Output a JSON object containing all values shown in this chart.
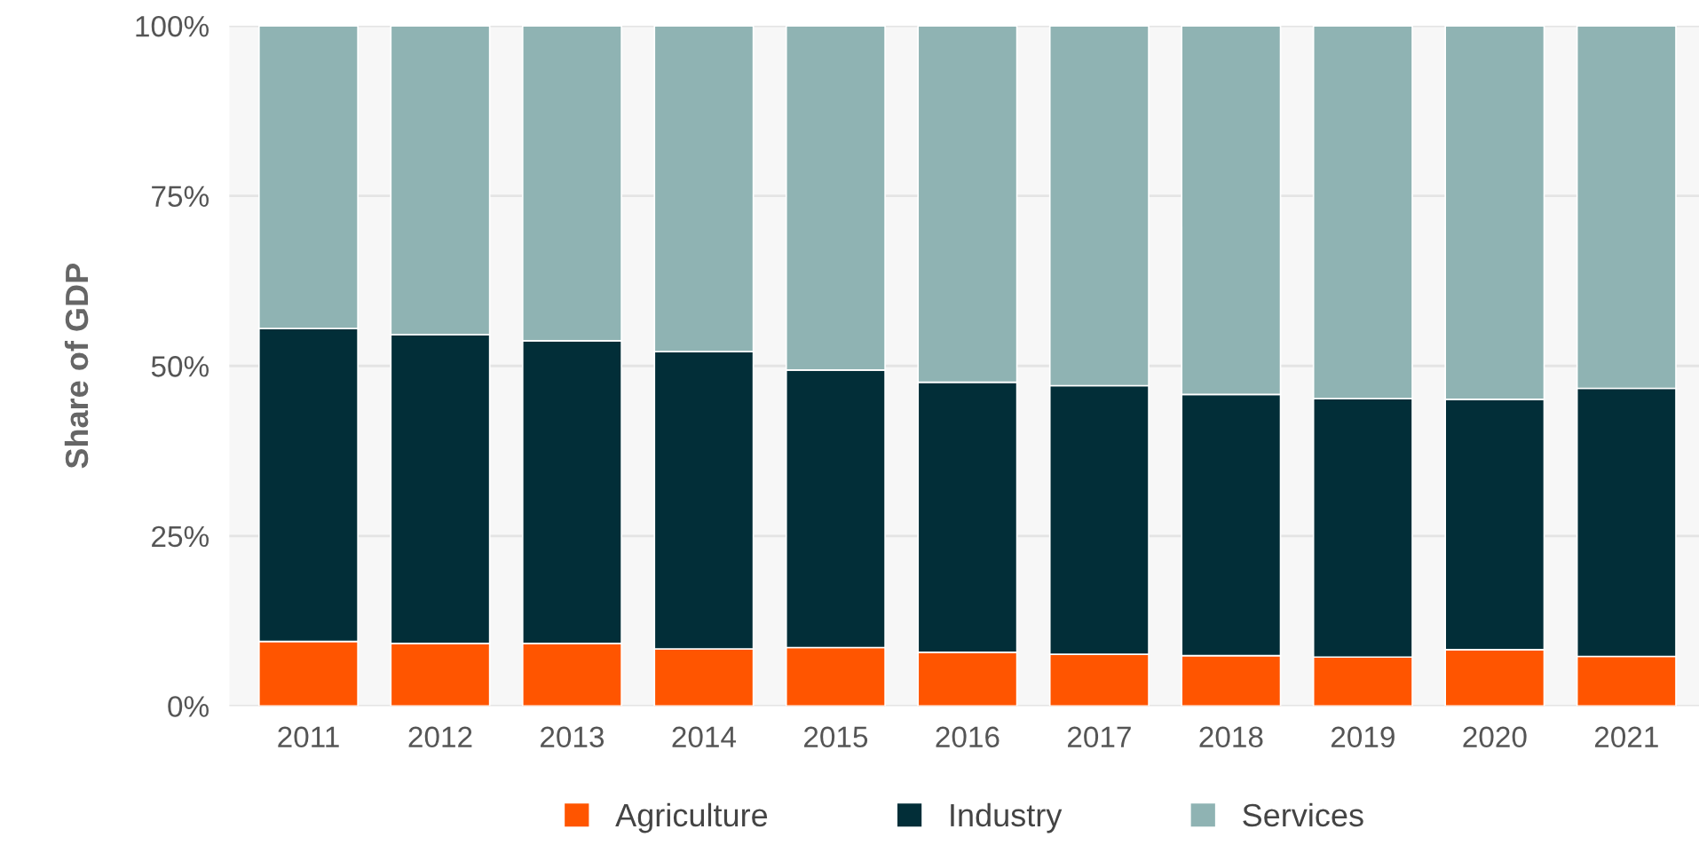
{
  "chart_data": {
    "type": "bar",
    "stacked": true,
    "ylabel": "Share of GDP",
    "categories": [
      "2011",
      "2012",
      "2013",
      "2014",
      "2015",
      "2016",
      "2017",
      "2018",
      "2019",
      "2020",
      "2021"
    ],
    "series": [
      {
        "name": "Agriculture",
        "color": "#ff5500",
        "values": [
          9.5,
          9.2,
          9.2,
          8.4,
          8.6,
          7.9,
          7.6,
          7.4,
          7.2,
          8.3,
          7.3
        ]
      },
      {
        "name": "Industry",
        "color": "#022e38",
        "values": [
          46.0,
          45.4,
          44.5,
          43.7,
          40.8,
          39.7,
          39.5,
          38.4,
          38.0,
          36.8,
          39.4
        ]
      },
      {
        "name": "Services",
        "color": "#8fb3b3",
        "values": [
          44.5,
          45.4,
          46.3,
          47.9,
          50.6,
          52.4,
          52.9,
          54.2,
          54.8,
          54.9,
          53.3
        ]
      }
    ],
    "ylim": [
      0,
      100
    ],
    "yticks": [
      {
        "value": 0,
        "label": "0%"
      },
      {
        "value": 25,
        "label": "25%"
      },
      {
        "value": 50,
        "label": "50%"
      },
      {
        "value": 75,
        "label": "75%"
      },
      {
        "value": 100,
        "label": "100%"
      }
    ],
    "grid": "y",
    "legend": "bottom"
  }
}
